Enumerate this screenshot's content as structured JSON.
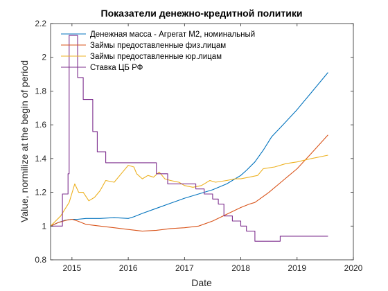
{
  "chart_data": {
    "type": "line",
    "title": "Показатели денежно-кредитной политики",
    "xlabel": "Date",
    "ylabel": "Value, normilize at the begin of period",
    "xlim": [
      2014.62,
      2020.0
    ],
    "ylim": [
      0.8,
      2.2
    ],
    "xticks": [
      2015,
      2016,
      2017,
      2018,
      2019,
      2020
    ],
    "yticks": [
      0.8,
      1.0,
      1.2,
      1.4,
      1.6,
      1.8,
      2.0,
      2.2
    ],
    "xtick_labels": [
      "2015",
      "2016",
      "2017",
      "2018",
      "2019",
      "2020"
    ],
    "ytick_labels": [
      "0.8",
      "1",
      "1.2",
      "1.4",
      "1.6",
      "1.8",
      "2",
      "2.2"
    ],
    "grid": false,
    "box": true,
    "legend_position": "top-left",
    "series": [
      {
        "name": "Денежная масса - Агрегат М2, номинальный",
        "color": "#0072BD",
        "style": "line",
        "x": [
          2014.62,
          2014.75,
          2014.88,
          2015.0,
          2015.1,
          2015.25,
          2015.5,
          2015.75,
          2016.0,
          2016.1,
          2016.25,
          2016.5,
          2016.75,
          2017.0,
          2017.25,
          2017.5,
          2017.75,
          2018.0,
          2018.1,
          2018.25,
          2018.4,
          2018.55,
          2018.75,
          2019.0,
          2019.25,
          2019.55
        ],
        "values": [
          1.0,
          1.02,
          1.035,
          1.04,
          1.04,
          1.045,
          1.045,
          1.05,
          1.045,
          1.055,
          1.075,
          1.105,
          1.135,
          1.165,
          1.19,
          1.215,
          1.25,
          1.3,
          1.33,
          1.38,
          1.45,
          1.53,
          1.6,
          1.69,
          1.79,
          1.91
        ]
      },
      {
        "name": "Займы предоставленные физ.лицам",
        "color": "#D95319",
        "style": "line",
        "x": [
          2014.62,
          2014.75,
          2014.9,
          2015.0,
          2015.1,
          2015.25,
          2015.5,
          2015.75,
          2016.0,
          2016.25,
          2016.5,
          2016.75,
          2017.0,
          2017.25,
          2017.5,
          2017.75,
          2018.0,
          2018.15,
          2018.25,
          2018.5,
          2018.75,
          2019.0,
          2019.25,
          2019.55
        ],
        "values": [
          1.0,
          1.02,
          1.035,
          1.04,
          1.03,
          1.01,
          1.0,
          0.99,
          0.98,
          0.97,
          0.975,
          0.985,
          0.99,
          1.0,
          1.03,
          1.07,
          1.11,
          1.13,
          1.14,
          1.2,
          1.27,
          1.34,
          1.43,
          1.54
        ]
      },
      {
        "name": "Займы предоставленные юр.лицам",
        "color": "#EDB120",
        "style": "line",
        "x": [
          2014.62,
          2014.8,
          2014.95,
          2015.05,
          2015.12,
          2015.2,
          2015.3,
          2015.4,
          2015.5,
          2015.6,
          2015.75,
          2015.9,
          2016.0,
          2016.1,
          2016.15,
          2016.25,
          2016.35,
          2016.45,
          2016.55,
          2016.65,
          2016.75,
          2016.9,
          2017.0,
          2017.15,
          2017.3,
          2017.45,
          2017.55,
          2017.75,
          2017.9,
          2018.0,
          2018.15,
          2018.3,
          2018.4,
          2018.6,
          2018.8,
          2019.0,
          2019.25,
          2019.55
        ],
        "values": [
          1.0,
          1.06,
          1.14,
          1.25,
          1.2,
          1.2,
          1.15,
          1.17,
          1.21,
          1.27,
          1.26,
          1.32,
          1.36,
          1.35,
          1.31,
          1.28,
          1.3,
          1.29,
          1.32,
          1.28,
          1.27,
          1.26,
          1.24,
          1.23,
          1.24,
          1.27,
          1.26,
          1.27,
          1.28,
          1.28,
          1.29,
          1.3,
          1.34,
          1.35,
          1.37,
          1.38,
          1.4,
          1.42
        ]
      },
      {
        "name": "Ставка ЦБ РФ",
        "color": "#7E2F8E",
        "style": "step",
        "x": [
          2014.62,
          2014.83,
          2014.93,
          2014.95,
          2014.97,
          2015.1,
          2015.2,
          2015.37,
          2015.45,
          2015.6,
          2016.5,
          2016.7,
          2017.2,
          2017.35,
          2017.5,
          2017.6,
          2017.7,
          2017.85,
          2018.0,
          2018.1,
          2018.25,
          2018.7,
          2019.55
        ],
        "values": [
          1.0,
          1.19,
          1.31,
          2.13,
          2.13,
          1.88,
          1.75,
          1.56,
          1.44,
          1.375,
          1.31,
          1.25,
          1.22,
          1.19,
          1.16,
          1.13,
          1.06,
          1.03,
          1.0,
          0.97,
          0.91,
          0.94,
          0.94
        ]
      }
    ]
  }
}
